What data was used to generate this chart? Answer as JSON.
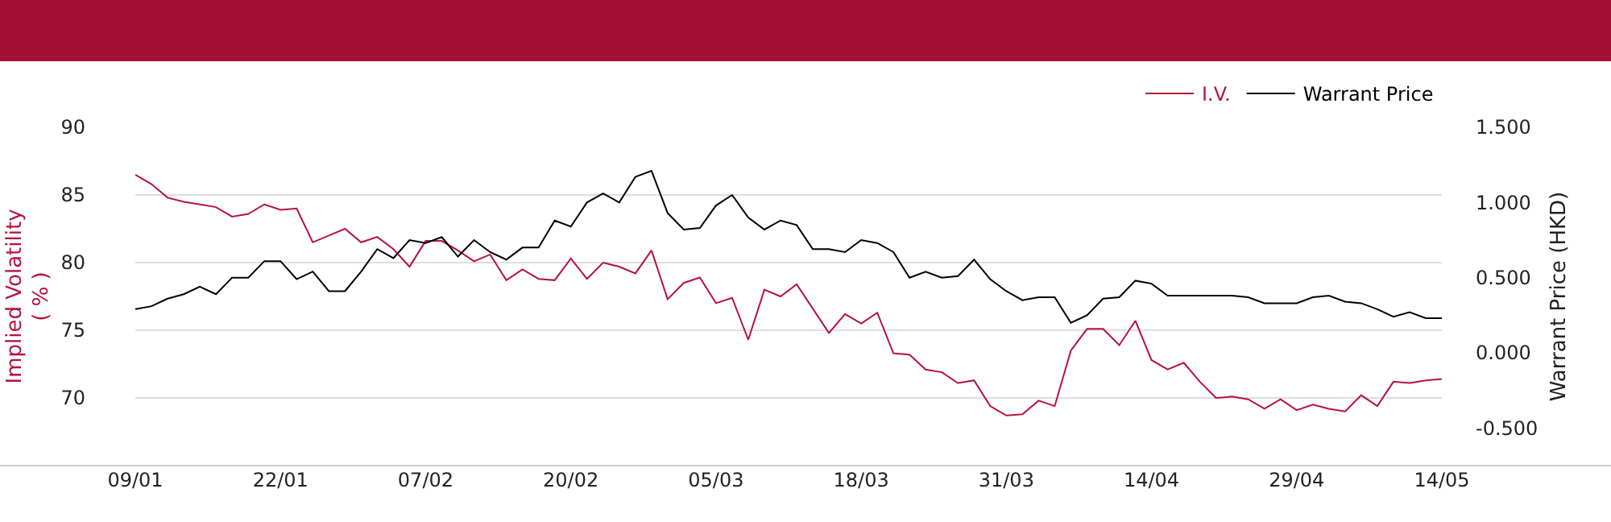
{
  "chart_data": {
    "type": "line",
    "ylabel": "Implied Volatility\n( % )",
    "y2label": "Warrant Price (HKD)",
    "categories": [
      "09/01",
      null,
      null,
      null,
      null,
      null,
      null,
      null,
      null,
      "22/01",
      null,
      null,
      null,
      null,
      null,
      null,
      null,
      null,
      "07/02",
      null,
      null,
      null,
      null,
      null,
      null,
      null,
      null,
      "20/02",
      null,
      null,
      null,
      null,
      null,
      null,
      null,
      null,
      "05/03",
      null,
      null,
      null,
      null,
      null,
      null,
      null,
      null,
      "18/03",
      null,
      null,
      null,
      null,
      null,
      null,
      null,
      null,
      "31/03",
      null,
      null,
      null,
      null,
      null,
      null,
      null,
      null,
      "14/04",
      null,
      null,
      null,
      null,
      null,
      null,
      null,
      null,
      "29/04",
      null,
      null,
      null,
      null,
      null,
      null,
      null,
      null,
      "14/05"
    ],
    "series": [
      {
        "name": "I.V.",
        "color": "#b5123f",
        "values": [
          86.5,
          85.8,
          84.8,
          84.5,
          84.3,
          84.1,
          83.4,
          83.6,
          84.3,
          83.9,
          84.0,
          81.5,
          82.0,
          82.5,
          81.5,
          81.9,
          81.0,
          79.7,
          81.6,
          81.6,
          80.9,
          80.1,
          80.6,
          78.7,
          79.5,
          78.8,
          78.7,
          80.3,
          78.8,
          80.0,
          79.7,
          79.2,
          80.9,
          77.3,
          78.5,
          78.9,
          77.0,
          77.4,
          74.3,
          78.0,
          77.5,
          78.4,
          76.6,
          74.8,
          76.2,
          75.5,
          76.3,
          73.3,
          73.2,
          72.1,
          71.9,
          71.1,
          71.3,
          69.4,
          68.7,
          68.8,
          69.8,
          69.4,
          73.5,
          75.1,
          75.1,
          73.9,
          75.7,
          72.8,
          72.1,
          72.6,
          71.2,
          70.0,
          70.1,
          69.9,
          69.2,
          69.9,
          69.1,
          69.5,
          69.2,
          69.0,
          70.2,
          69.4,
          71.2,
          71.1,
          71.3,
          71.4
        ]
      },
      {
        "name": "Warrant Price",
        "color": "#000000",
        "axis": "y2",
        "values": [
          0.29,
          0.31,
          0.36,
          0.39,
          0.44,
          0.39,
          0.5,
          0.5,
          0.61,
          0.61,
          0.49,
          0.54,
          0.41,
          0.41,
          0.54,
          0.69,
          0.63,
          0.75,
          0.73,
          0.77,
          0.64,
          0.75,
          0.67,
          0.62,
          0.7,
          0.7,
          0.88,
          0.84,
          1.0,
          1.06,
          1.0,
          1.17,
          1.21,
          0.93,
          0.82,
          0.83,
          0.98,
          1.05,
          0.9,
          0.82,
          0.88,
          0.85,
          0.69,
          0.69,
          0.67,
          0.75,
          0.73,
          0.67,
          0.5,
          0.54,
          0.5,
          0.51,
          0.62,
          0.49,
          0.41,
          0.35,
          0.37,
          0.37,
          0.2,
          0.25,
          0.36,
          0.37,
          0.48,
          0.46,
          0.38,
          0.38,
          0.38,
          0.38,
          0.38,
          0.37,
          0.33,
          0.33,
          0.33,
          0.37,
          0.38,
          0.34,
          0.33,
          0.29,
          0.24,
          0.27,
          0.23,
          0.23
        ]
      }
    ],
    "ylim": [
      65,
      90
    ],
    "yticks": [
      70,
      75,
      80,
      85,
      90
    ],
    "y2lim": [
      -0.75,
      1.5
    ],
    "y2ticks": [
      {
        "value": -0.5,
        "label": "-0.500"
      },
      {
        "value": 0,
        "label": "0.000"
      },
      {
        "value": 0.5,
        "label": "0.500"
      },
      {
        "value": 1,
        "label": "1.000"
      },
      {
        "value": 1.5,
        "label": "1.500"
      }
    ],
    "grid": "y",
    "legend": "top right",
    "marker": "none",
    "line_style": "solid"
  }
}
